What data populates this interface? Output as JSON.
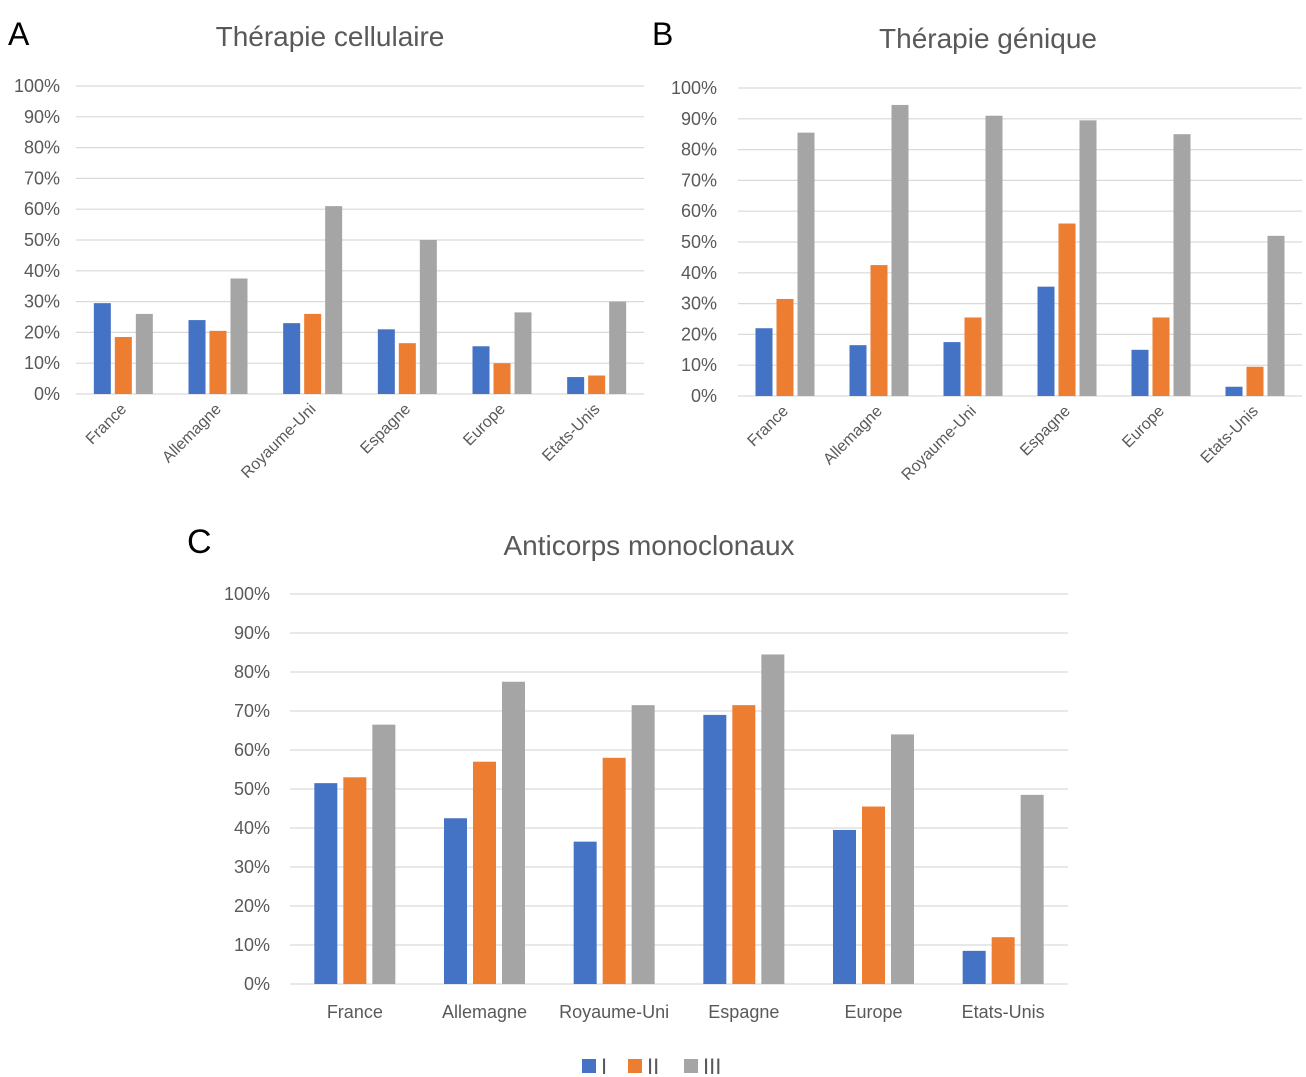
{
  "colors": {
    "I": "#4472c4",
    "II": "#ed7d31",
    "III": "#a5a5a5",
    "grid": "#d9d9d9",
    "text": "#595959"
  },
  "legend": [
    "I",
    "II",
    "III"
  ],
  "chart_data": [
    {
      "panel": "A",
      "type": "bar",
      "title": "Thérapie cellulaire",
      "categories": [
        "France",
        "Allemagne",
        "Royaume-Uni",
        "Espagne",
        "Europe",
        "Etats-Unis"
      ],
      "yticks": [
        "0%",
        "10%",
        "20%",
        "30%",
        "40%",
        "50%",
        "60%",
        "70%",
        "80%",
        "90%",
        "100%"
      ],
      "ylim": [
        0,
        100
      ],
      "series": [
        {
          "name": "I",
          "values": [
            29.5,
            24,
            23,
            21,
            15.5,
            5.5
          ]
        },
        {
          "name": "II",
          "values": [
            18.5,
            20.5,
            26,
            16.5,
            10,
            6
          ]
        },
        {
          "name": "III",
          "values": [
            26,
            37.5,
            61,
            50,
            26.5,
            30
          ]
        }
      ]
    },
    {
      "panel": "B",
      "type": "bar",
      "title": "Thérapie génique",
      "categories": [
        "France",
        "Allemagne",
        "Royaume-Uni",
        "Espagne",
        "Europe",
        "Etats-Unis"
      ],
      "yticks": [
        "0%",
        "10%",
        "20%",
        "30%",
        "40%",
        "50%",
        "60%",
        "70%",
        "80%",
        "90%",
        "100%"
      ],
      "ylim": [
        0,
        100
      ],
      "series": [
        {
          "name": "I",
          "values": [
            22,
            16.5,
            17.5,
            35.5,
            15,
            3
          ]
        },
        {
          "name": "II",
          "values": [
            31.5,
            42.5,
            25.5,
            56,
            25.5,
            9.5
          ]
        },
        {
          "name": "III",
          "values": [
            85.5,
            94.5,
            91,
            89.5,
            85,
            52
          ]
        }
      ]
    },
    {
      "panel": "C",
      "type": "bar",
      "title": "Anticorps monoclonaux",
      "categories": [
        "France",
        "Allemagne",
        "Royaume-Uni",
        "Espagne",
        "Europe",
        "Etats-Unis"
      ],
      "yticks": [
        "0%",
        "10%",
        "20%",
        "30%",
        "40%",
        "50%",
        "60%",
        "70%",
        "80%",
        "90%",
        "100%"
      ],
      "ylim": [
        0,
        100
      ],
      "series": [
        {
          "name": "I",
          "values": [
            51.5,
            42.5,
            36.5,
            69,
            39.5,
            8.5
          ]
        },
        {
          "name": "II",
          "values": [
            53,
            57,
            58,
            71.5,
            45.5,
            12
          ]
        },
        {
          "name": "III",
          "values": [
            66.5,
            77.5,
            71.5,
            84.5,
            64,
            48.5
          ]
        }
      ]
    }
  ]
}
